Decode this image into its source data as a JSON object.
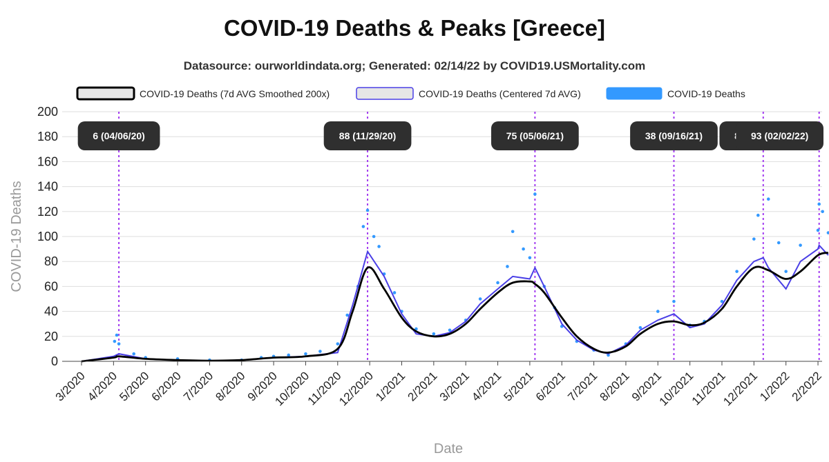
{
  "chart_data": {
    "type": "line",
    "title": "COVID-19 Deaths & Peaks [Greece]",
    "subtitle": "Datasource: ourworldindata.org; Generated: 02/14/22 by COVID19.USMortality.com",
    "xlabel": "Date",
    "ylabel": "COVID-19 Deaths",
    "ylim": [
      0,
      200
    ],
    "yticks": [
      0,
      20,
      40,
      60,
      80,
      100,
      120,
      140,
      160,
      180,
      200
    ],
    "x_tick_labels": [
      "3/2020",
      "4/2020",
      "5/2020",
      "6/2020",
      "7/2020",
      "8/2020",
      "9/2020",
      "10/2020",
      "11/2020",
      "12/2020",
      "1/2021",
      "2/2021",
      "3/2021",
      "4/2021",
      "5/2021",
      "6/2021",
      "7/2021",
      "8/2021",
      "9/2021",
      "10/2021",
      "11/2021",
      "12/2021",
      "1/2022",
      "2/2022"
    ],
    "grid": true,
    "legend_position": "top",
    "colors": {
      "smoothed": "#000000",
      "centered": "#4a3fe6",
      "daily": "#3399ff",
      "peak_line": "#a23bf0",
      "peak_label_bg": "#2f2f2f",
      "grid": "#dddddd"
    },
    "series": [
      {
        "name": "COVID-19 Deaths (7d AVG Smoothed 200x)",
        "points": [
          [
            "3/2020",
            0
          ],
          [
            "4/2020",
            3
          ],
          [
            "4/06/20",
            4
          ],
          [
            "5/2020",
            2
          ],
          [
            "6/2020",
            1
          ],
          [
            "7/2020",
            0.5
          ],
          [
            "8/2020",
            1
          ],
          [
            "9/2020",
            3
          ],
          [
            "10/2020",
            4
          ],
          [
            "11/2020",
            10
          ],
          [
            "11/15/20",
            40
          ],
          [
            "11/29/20",
            75
          ],
          [
            "12/15/20",
            58
          ],
          [
            "1/2021",
            35
          ],
          [
            "1/15/21",
            24
          ],
          [
            "2/2021",
            20
          ],
          [
            "2/15/21",
            22
          ],
          [
            "3/2021",
            30
          ],
          [
            "3/15/21",
            42
          ],
          [
            "4/2021",
            55
          ],
          [
            "4/15/21",
            63
          ],
          [
            "5/2021",
            64
          ],
          [
            "5/06/21",
            62
          ],
          [
            "5/15/21",
            55
          ],
          [
            "6/2021",
            35
          ],
          [
            "6/15/21",
            20
          ],
          [
            "7/2021",
            10
          ],
          [
            "7/15/21",
            7
          ],
          [
            "8/2021",
            12
          ],
          [
            "8/15/21",
            22
          ],
          [
            "9/2021",
            30
          ],
          [
            "9/16/21",
            32
          ],
          [
            "10/2021",
            29
          ],
          [
            "10/15/21",
            31
          ],
          [
            "11/2021",
            42
          ],
          [
            "11/15/21",
            60
          ],
          [
            "12/2021",
            75
          ],
          [
            "12/15/21",
            73
          ],
          [
            "1/2022",
            66
          ],
          [
            "1/15/22",
            72
          ],
          [
            "2/2022",
            85
          ],
          [
            "2/10/22",
            87
          ]
        ]
      },
      {
        "name": "COVID-19 Deaths (Centered 7d AVG)",
        "points": [
          [
            "3/2020",
            0
          ],
          [
            "4/2020",
            4
          ],
          [
            "4/06/20",
            6
          ],
          [
            "5/2020",
            2
          ],
          [
            "6/2020",
            1
          ],
          [
            "7/2020",
            0.5
          ],
          [
            "8/2020",
            1
          ],
          [
            "9/2020",
            3
          ],
          [
            "10/2020",
            4
          ],
          [
            "11/2020",
            7
          ],
          [
            "11/15/20",
            45
          ],
          [
            "11/29/20",
            88
          ],
          [
            "12/15/20",
            68
          ],
          [
            "1/2021",
            38
          ],
          [
            "1/15/21",
            22
          ],
          [
            "2/2021",
            20
          ],
          [
            "2/15/21",
            23
          ],
          [
            "3/2021",
            32
          ],
          [
            "3/15/21",
            46
          ],
          [
            "4/2021",
            58
          ],
          [
            "4/15/21",
            68
          ],
          [
            "5/2021",
            66
          ],
          [
            "5/06/21",
            75
          ],
          [
            "5/15/21",
            60
          ],
          [
            "6/2021",
            30
          ],
          [
            "6/15/21",
            17
          ],
          [
            "7/2021",
            9
          ],
          [
            "7/15/21",
            6
          ],
          [
            "8/2021",
            13
          ],
          [
            "8/15/21",
            25
          ],
          [
            "9/2021",
            33
          ],
          [
            "9/16/21",
            38
          ],
          [
            "10/2021",
            27
          ],
          [
            "10/15/21",
            30
          ],
          [
            "11/2021",
            45
          ],
          [
            "11/15/21",
            65
          ],
          [
            "12/2021",
            80
          ],
          [
            "12/10/21",
            83
          ],
          [
            "12/15/21",
            75
          ],
          [
            "1/2022",
            58
          ],
          [
            "1/15/22",
            80
          ],
          [
            "2/2022",
            90
          ],
          [
            "2/02/22",
            93
          ],
          [
            "2/10/22",
            85
          ]
        ]
      },
      {
        "name": "COVID-19 Deaths",
        "points": [
          [
            "4/02/20",
            16
          ],
          [
            "4/04/20",
            21
          ],
          [
            "4/06/20",
            14
          ],
          [
            "4/20/20",
            6
          ],
          [
            "5/2020",
            3
          ],
          [
            "6/2020",
            2
          ],
          [
            "7/2020",
            1
          ],
          [
            "8/2020",
            1
          ],
          [
            "8/20/20",
            3
          ],
          [
            "9/2020",
            4
          ],
          [
            "9/15/20",
            5
          ],
          [
            "10/2020",
            6
          ],
          [
            "10/15/20",
            8
          ],
          [
            "11/2020",
            14
          ],
          [
            "11/10/20",
            37
          ],
          [
            "11/20/20",
            60
          ],
          [
            "11/25/20",
            108
          ],
          [
            "11/29/20",
            121
          ],
          [
            "12/05/20",
            100
          ],
          [
            "12/10/20",
            92
          ],
          [
            "12/15/20",
            70
          ],
          [
            "12/25/20",
            55
          ],
          [
            "1/2021",
            40
          ],
          [
            "1/15/21",
            26
          ],
          [
            "2/2021",
            22
          ],
          [
            "2/15/21",
            25
          ],
          [
            "3/2021",
            33
          ],
          [
            "3/15/21",
            50
          ],
          [
            "4/2021",
            63
          ],
          [
            "4/10/21",
            76
          ],
          [
            "4/15/21",
            104
          ],
          [
            "4/25/21",
            90
          ],
          [
            "5/01/21",
            83
          ],
          [
            "5/06/21",
            134
          ],
          [
            "5/15/21",
            60
          ],
          [
            "5/25/21",
            43
          ],
          [
            "6/2021",
            28
          ],
          [
            "6/15/21",
            16
          ],
          [
            "7/2021",
            9
          ],
          [
            "7/15/21",
            5
          ],
          [
            "8/2021",
            14
          ],
          [
            "8/15/21",
            27
          ],
          [
            "9/2021",
            40
          ],
          [
            "9/16/21",
            48
          ],
          [
            "10/2021",
            29
          ],
          [
            "10/15/21",
            32
          ],
          [
            "11/2021",
            48
          ],
          [
            "11/15/21",
            72
          ],
          [
            "12/2021",
            98
          ],
          [
            "12/05/21",
            117
          ],
          [
            "12/15/21",
            130
          ],
          [
            "12/25/21",
            95
          ],
          [
            "1/2022",
            72
          ],
          [
            "1/15/22",
            93
          ],
          [
            "2/2022",
            105
          ],
          [
            "2/02/22",
            126
          ],
          [
            "2/05/22",
            120
          ],
          [
            "2/10/22",
            103
          ]
        ]
      }
    ],
    "peaks": [
      {
        "date": "4/06/20",
        "value": 6,
        "label": "6 (04/06/20)"
      },
      {
        "date": "11/29/20",
        "value": 88,
        "label": "88 (11/29/20)"
      },
      {
        "date": "5/06/21",
        "value": 75,
        "label": "75 (05/06/21)"
      },
      {
        "date": "9/16/21",
        "value": 38,
        "label": "38 (09/16/21)"
      },
      {
        "date": "12/10/21",
        "value": 83,
        "label": "83 (12/10/21)"
      },
      {
        "date": "2/02/22",
        "value": 93,
        "label": "93 (02/02/22)"
      }
    ]
  }
}
